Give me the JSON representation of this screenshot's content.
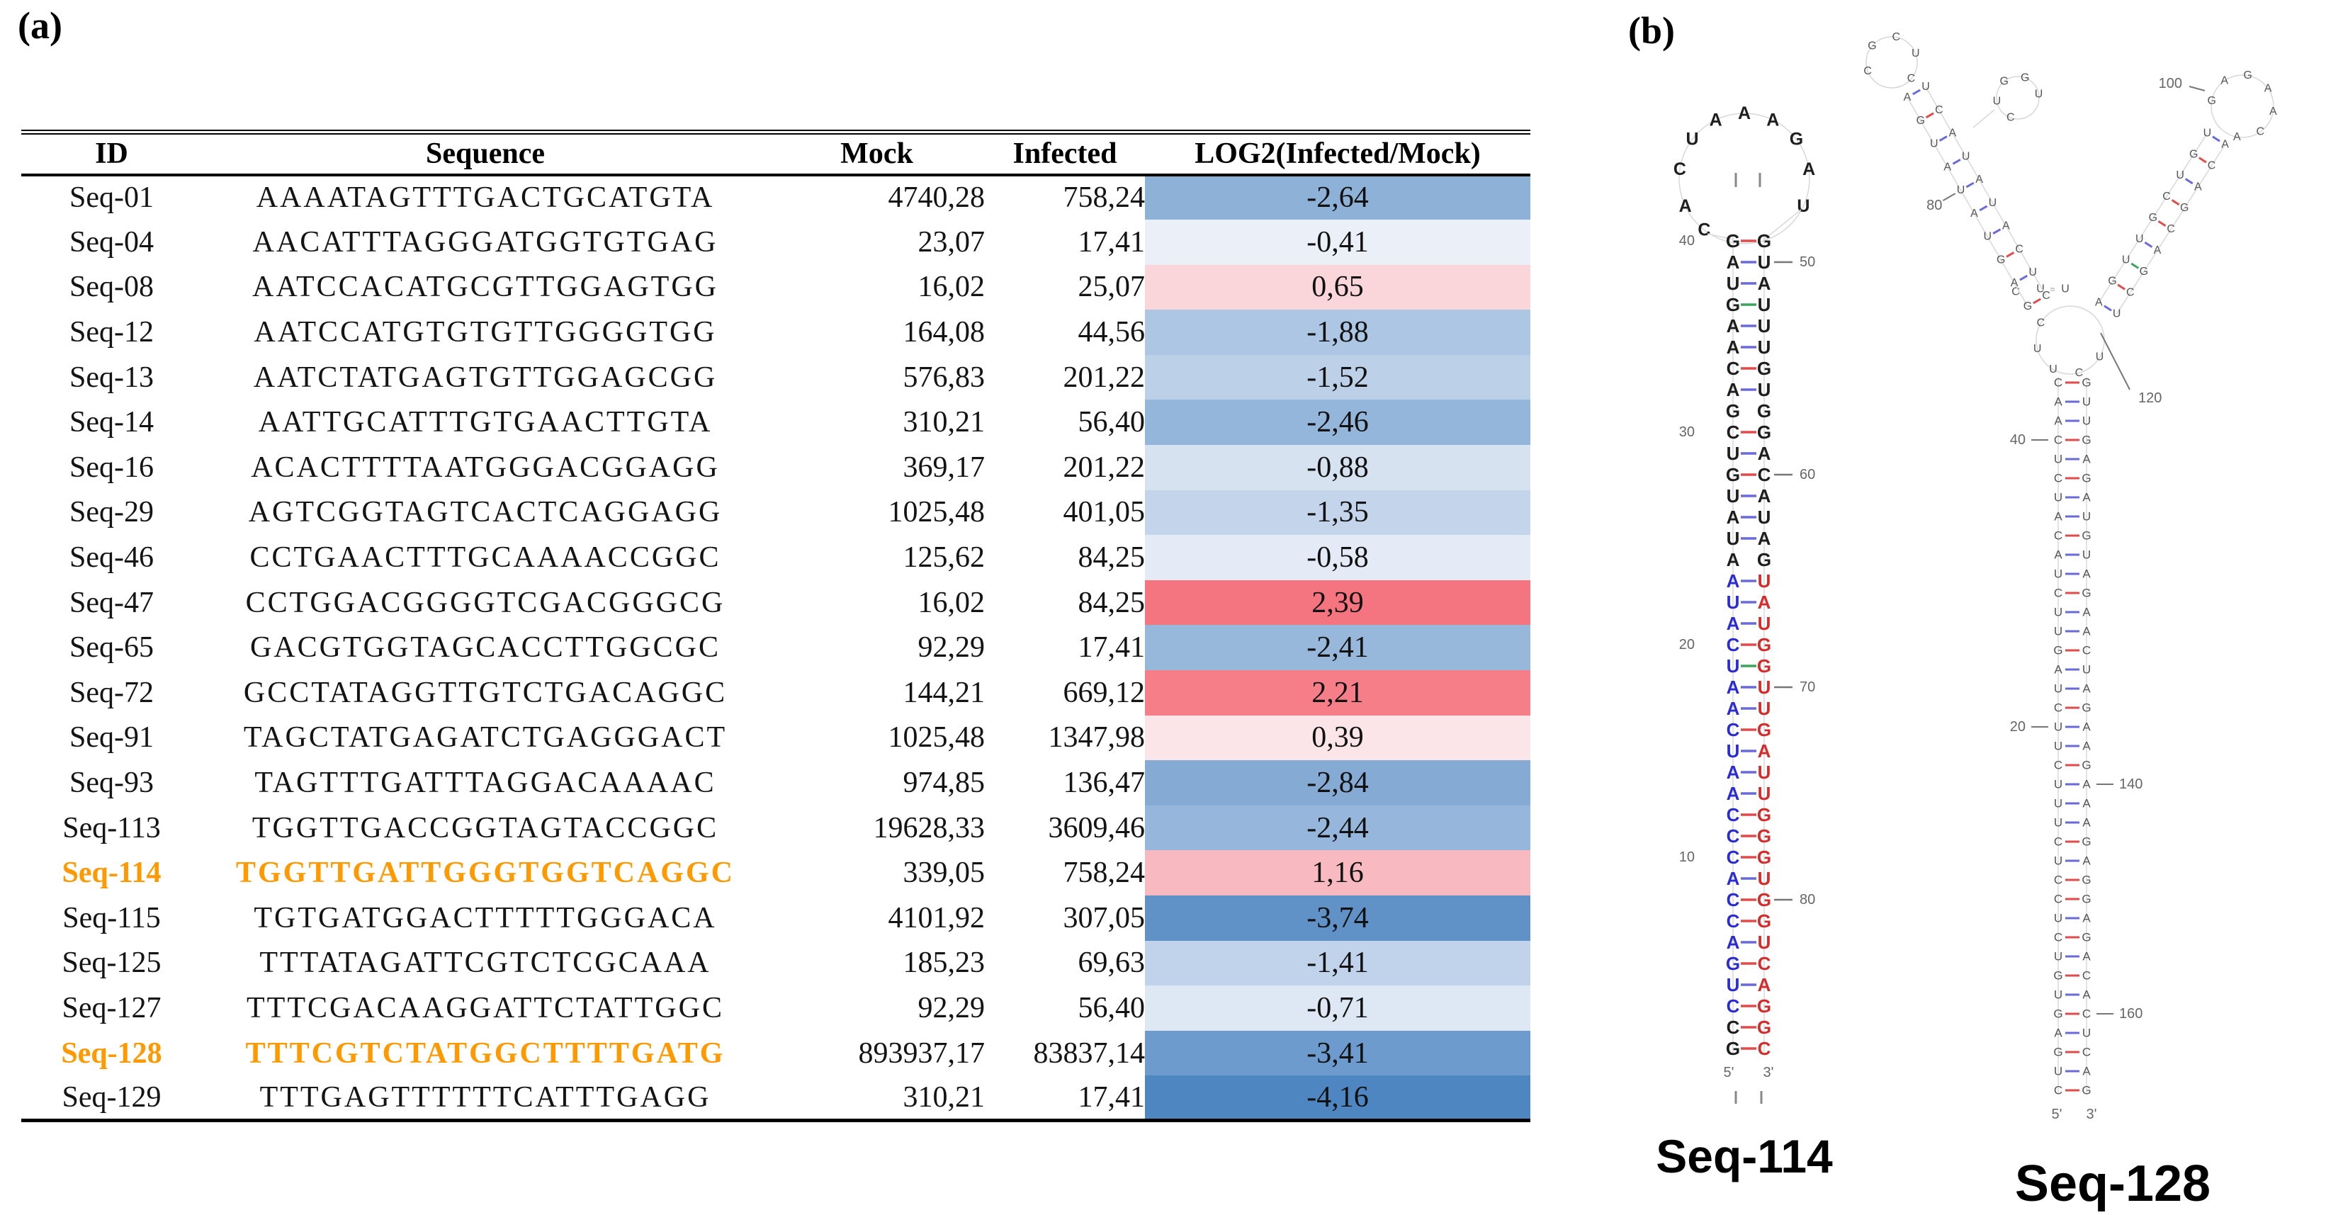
{
  "panel_a": {
    "label": "(a)"
  },
  "panel_b": {
    "label": "(b)"
  },
  "table": {
    "headers": [
      "ID",
      "Sequence",
      "Mock",
      "Infected",
      "LOG2(Infected/Mock)"
    ],
    "highlight_color": "#FF9900",
    "heatmap": {
      "neg_color": "#4E86C2",
      "pos_color": "#F4747F",
      "neutral_color": "#FCFBFE",
      "neg_max": -4.16,
      "pos_max": 2.39
    },
    "rows": [
      {
        "id": "Seq-01",
        "sequence": "AAAATAGTTTGACTGCATGTA",
        "mock": "4740,28",
        "infected": "758,24",
        "log2": "-2,64",
        "highlight": false
      },
      {
        "id": "Seq-04",
        "sequence": "AACATTTAGGGATGGTGTGAG",
        "mock": "23,07",
        "infected": "17,41",
        "log2": "-0,41",
        "highlight": false
      },
      {
        "id": "Seq-08",
        "sequence": "AATCCACATGCGTTGGAGTGG",
        "mock": "16,02",
        "infected": "25,07",
        "log2": "0,65",
        "highlight": false
      },
      {
        "id": "Seq-12",
        "sequence": "AATCCATGTGTGTTGGGGTGG",
        "mock": "164,08",
        "infected": "44,56",
        "log2": "-1,88",
        "highlight": false
      },
      {
        "id": "Seq-13",
        "sequence": "AATCTATGAGTGTTGGAGCGG",
        "mock": "576,83",
        "infected": "201,22",
        "log2": "-1,52",
        "highlight": false
      },
      {
        "id": "Seq-14",
        "sequence": "AATTGCATTTGTGAACTTGTA",
        "mock": "310,21",
        "infected": "56,40",
        "log2": "-2,46",
        "highlight": false
      },
      {
        "id": "Seq-16",
        "sequence": "ACACTTTTAATGGGACGGAGG",
        "mock": "369,17",
        "infected": "201,22",
        "log2": "-0,88",
        "highlight": false
      },
      {
        "id": "Seq-29",
        "sequence": "AGTCGGTAGTCACTCAGGAGG",
        "mock": "1025,48",
        "infected": "401,05",
        "log2": "-1,35",
        "highlight": false
      },
      {
        "id": "Seq-46",
        "sequence": "CCTGAACTTTGCAAAACCGGC",
        "mock": "125,62",
        "infected": "84,25",
        "log2": "-0,58",
        "highlight": false
      },
      {
        "id": "Seq-47",
        "sequence": "CCTGGACGGGGTCGACGGGCG",
        "mock": "16,02",
        "infected": "84,25",
        "log2": "2,39",
        "highlight": false
      },
      {
        "id": "Seq-65",
        "sequence": "GACGTGGTAGCACCTTGGCGC",
        "mock": "92,29",
        "infected": "17,41",
        "log2": "-2,41",
        "highlight": false
      },
      {
        "id": "Seq-72",
        "sequence": "GCCTATAGGTTGTCTGACAGGC",
        "mock": "144,21",
        "infected": "669,12",
        "log2": "2,21",
        "highlight": false
      },
      {
        "id": "Seq-91",
        "sequence": "TAGCTATGAGATCTGAGGGACT",
        "mock": "1025,48",
        "infected": "1347,98",
        "log2": "0,39",
        "highlight": false
      },
      {
        "id": "Seq-93",
        "sequence": "TAGTTTGATTTAGGACAAAAC",
        "mock": "974,85",
        "infected": "136,47",
        "log2": "-2,84",
        "highlight": false
      },
      {
        "id": "Seq-113",
        "sequence": "TGGTTGACCGGTAGTACCGGC",
        "mock": "19628,33",
        "infected": "3609,46",
        "log2": "-2,44",
        "highlight": false
      },
      {
        "id": "Seq-114",
        "sequence": "TGGTTGATTGGGTGGTCAGGC",
        "mock": "339,05",
        "infected": "758,24",
        "log2": "1,16",
        "highlight": true
      },
      {
        "id": "Seq-115",
        "sequence": "TGTGATGGACTTTTTGGGACA",
        "mock": "4101,92",
        "infected": "307,05",
        "log2": "-3,74",
        "highlight": false
      },
      {
        "id": "Seq-125",
        "sequence": "TTTATAGATTCGTCTCGCAAA",
        "mock": "185,23",
        "infected": "69,63",
        "log2": "-1,41",
        "highlight": false
      },
      {
        "id": "Seq-127",
        "sequence": "TTTCGACAAGGATTCTATTGGC",
        "mock": "92,29",
        "infected": "56,40",
        "log2": "-0,71",
        "highlight": false
      },
      {
        "id": "Seq-128",
        "sequence": "TTTCGTCTATGGCTTTTGATG",
        "mock": "893937,17",
        "infected": "83837,14",
        "log2": "-3,41",
        "highlight": true
      },
      {
        "id": "Seq-129",
        "sequence": "TTTGAGTTTTTTCATTTGAGG",
        "mock": "310,21",
        "infected": "17,41",
        "log2": "-4,16",
        "highlight": false
      }
    ]
  },
  "structures": {
    "colors": {
      "bond_red": "#E14B4B",
      "bond_blue": "#6A6AD8",
      "bond_green": "#3FA45B",
      "letter_blue": "#2B2BD4",
      "letter_red": "#D42B2B",
      "letter_dark": "#1E1E1E",
      "letter_gray": "#555555",
      "backbone": "#D8D8D8",
      "label_gray": "#666666"
    },
    "seq114": {
      "caption": "Seq-114",
      "five_prime": "5'",
      "three_prime": "3'",
      "loop_letters": [
        "C",
        "A",
        "C",
        "U",
        "A",
        "A",
        "A",
        "G",
        "A",
        "U"
      ],
      "pairs": [
        [
          "G",
          "G",
          "r",
          "40",
          ""
        ],
        [
          "A",
          "U",
          "b",
          "",
          "50"
        ],
        [
          "U",
          "A",
          "b",
          "",
          ""
        ],
        [
          "G",
          "U",
          "g",
          "",
          ""
        ],
        [
          "A",
          "U",
          "b",
          "",
          ""
        ],
        [
          "A",
          "U",
          "b",
          "",
          ""
        ],
        [
          "C",
          "G",
          "r",
          "",
          ""
        ],
        [
          "A",
          "U",
          "b",
          "",
          ""
        ],
        [
          "G",
          "G",
          "n",
          "",
          ""
        ],
        [
          "C",
          "G",
          "r",
          "30",
          ""
        ],
        [
          "U",
          "A",
          "b",
          "",
          ""
        ],
        [
          "G",
          "C",
          "r",
          "",
          "60"
        ],
        [
          "U",
          "A",
          "b",
          "",
          ""
        ],
        [
          "A",
          "U",
          "b",
          "",
          ""
        ],
        [
          "U",
          "A",
          "b",
          "",
          ""
        ],
        [
          "A",
          "G",
          "n",
          "",
          ""
        ],
        [
          "A",
          "U",
          "b",
          "",
          ""
        ],
        [
          "U",
          "A",
          "b",
          "",
          ""
        ],
        [
          "A",
          "U",
          "b",
          "",
          ""
        ],
        [
          "C",
          "G",
          "r",
          "20",
          ""
        ],
        [
          "U",
          "G",
          "g",
          "",
          ""
        ],
        [
          "A",
          "U",
          "b",
          "",
          "70"
        ],
        [
          "A",
          "U",
          "b",
          "",
          ""
        ],
        [
          "C",
          "G",
          "r",
          "",
          ""
        ],
        [
          "U",
          "A",
          "b",
          "",
          ""
        ],
        [
          "A",
          "U",
          "b",
          "",
          ""
        ],
        [
          "A",
          "U",
          "b",
          "",
          ""
        ],
        [
          "C",
          "G",
          "r",
          "",
          ""
        ],
        [
          "C",
          "G",
          "r",
          "",
          ""
        ],
        [
          "C",
          "G",
          "r",
          "10",
          ""
        ],
        [
          "A",
          "U",
          "b",
          "",
          ""
        ],
        [
          "C",
          "G",
          "r",
          "",
          "80"
        ],
        [
          "C",
          "G",
          "r",
          "",
          ""
        ],
        [
          "A",
          "U",
          "b",
          "",
          ""
        ],
        [
          "G",
          "C",
          "r",
          "",
          ""
        ],
        [
          "U",
          "A",
          "b",
          "",
          ""
        ],
        [
          "C",
          "G",
          "r",
          "",
          ""
        ],
        [
          "C",
          "G",
          "r",
          "",
          ""
        ],
        [
          "G",
          "C",
          "r",
          "",
          ""
        ]
      ]
    },
    "seq128": {
      "caption": "Seq-128",
      "five_prime": "5'",
      "three_prime": "3'",
      "stem_pairs": [
        [
          "C",
          "G",
          "r",
          "",
          ""
        ],
        [
          "A",
          "U",
          "b",
          "",
          ""
        ],
        [
          "A",
          "U",
          "b",
          "",
          ""
        ],
        [
          "C",
          "G",
          "r",
          "40",
          ""
        ],
        [
          "U",
          "A",
          "b",
          "",
          ""
        ],
        [
          "C",
          "G",
          "r",
          "",
          ""
        ],
        [
          "U",
          "A",
          "b",
          "",
          ""
        ],
        [
          "A",
          "U",
          "b",
          "",
          ""
        ],
        [
          "C",
          "G",
          "r",
          "",
          ""
        ],
        [
          "A",
          "U",
          "b",
          "",
          ""
        ],
        [
          "U",
          "A",
          "b",
          "",
          ""
        ],
        [
          "C",
          "G",
          "r",
          "",
          ""
        ],
        [
          "U",
          "A",
          "b",
          "",
          ""
        ],
        [
          "U",
          "A",
          "b",
          "",
          ""
        ],
        [
          "G",
          "C",
          "r",
          "",
          ""
        ],
        [
          "A",
          "U",
          "b",
          "",
          ""
        ],
        [
          "U",
          "A",
          "b",
          "",
          ""
        ],
        [
          "C",
          "G",
          "r",
          "",
          ""
        ],
        [
          "U",
          "A",
          "b",
          "20",
          ""
        ],
        [
          "U",
          "A",
          "b",
          "",
          ""
        ],
        [
          "C",
          "G",
          "r",
          "",
          ""
        ],
        [
          "U",
          "A",
          "b",
          "",
          "140"
        ],
        [
          "U",
          "A",
          "b",
          "",
          ""
        ],
        [
          "U",
          "A",
          "b",
          "",
          ""
        ],
        [
          "C",
          "G",
          "r",
          "",
          ""
        ],
        [
          "U",
          "A",
          "b",
          "",
          ""
        ],
        [
          "C",
          "G",
          "r",
          "",
          ""
        ],
        [
          "C",
          "G",
          "r",
          "",
          ""
        ],
        [
          "U",
          "A",
          "b",
          "",
          ""
        ],
        [
          "C",
          "G",
          "r",
          "",
          ""
        ],
        [
          "U",
          "A",
          "b",
          "",
          ""
        ],
        [
          "G",
          "C",
          "r",
          "",
          ""
        ],
        [
          "U",
          "A",
          "b",
          "",
          ""
        ],
        [
          "G",
          "C",
          "r",
          "",
          "160"
        ],
        [
          "A",
          "U",
          "b",
          "",
          ""
        ],
        [
          "G",
          "C",
          "r",
          "",
          ""
        ],
        [
          "U",
          "A",
          "b",
          "",
          ""
        ],
        [
          "C",
          "G",
          "r",
          "",
          ""
        ]
      ],
      "left_arm_pairs": [
        [
          "C",
          "G",
          "r",
          "",
          ""
        ],
        [
          "U",
          "A",
          "b",
          "",
          ""
        ],
        [
          "C",
          "G",
          "r",
          "",
          ""
        ],
        [
          "A",
          "U",
          "b",
          "",
          ""
        ],
        [
          "U",
          "A",
          "b",
          "",
          ""
        ],
        [
          "A",
          "U",
          "b",
          "",
          "80"
        ],
        [
          "U",
          "A",
          "b",
          "",
          ""
        ],
        [
          "A",
          "U",
          "b",
          "",
          ""
        ],
        [
          "C",
          "G",
          "r",
          "",
          ""
        ],
        [
          "U",
          "A",
          "b",
          "",
          ""
        ]
      ],
      "right_arm_pairs": [
        [
          "U",
          "A",
          "b",
          "",
          ""
        ],
        [
          "C",
          "G",
          "r",
          "",
          ""
        ],
        [
          "G",
          "U",
          "g",
          "",
          ""
        ],
        [
          "A",
          "U",
          "b",
          "",
          ""
        ],
        [
          "C",
          "G",
          "r",
          "",
          ""
        ],
        [
          "G",
          "C",
          "r",
          "",
          ""
        ],
        [
          "A",
          "U",
          "b",
          "",
          ""
        ],
        [
          "C",
          "G",
          "r",
          "",
          ""
        ],
        [
          "A",
          "U",
          "b",
          "",
          ""
        ]
      ],
      "left_tip_loop": [
        "C",
        "G",
        "C",
        "U",
        "C"
      ],
      "left_bulge": [
        "C",
        "U",
        "G",
        "G",
        "U"
      ],
      "right_tip_loop": [
        "G",
        "A",
        "G",
        "A",
        "A",
        "C",
        "A"
      ],
      "junction_letters": [
        "C",
        "U",
        "U",
        "C",
        "U"
      ],
      "bridge_letters": [
        "C",
        "U",
        "U"
      ],
      "labels": {
        "right_loop": "100",
        "junction": "120"
      }
    }
  }
}
